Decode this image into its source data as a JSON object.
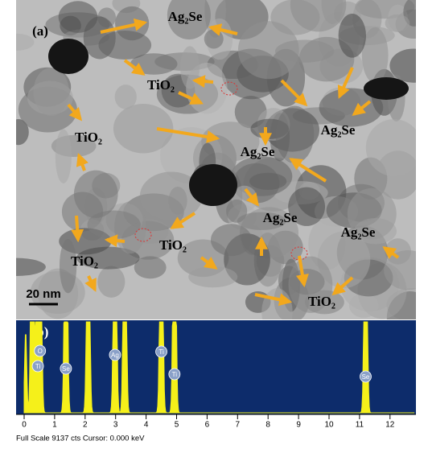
{
  "figure": {
    "panel_a": {
      "label": "(a)",
      "annotations": [
        "Ag₂Se",
        "TiO₂",
        "TiO₂",
        "Ag₂Se",
        "Ag₂Se",
        "Ag₂Se",
        "Ag₂Se",
        "TiO₂",
        "TiO₂",
        "TiO₂"
      ],
      "scale_bar": "20 nm"
    },
    "panel_b": {
      "label": "(b)",
      "peaks": [
        "O",
        "Ti",
        "Se",
        "Ag",
        "Ti",
        "Ti",
        "Se"
      ],
      "x_ticks": [
        0,
        1,
        2,
        3,
        4,
        5,
        6,
        7,
        8,
        9,
        10,
        11,
        12
      ],
      "footer": "Full Scale 9137 cts  Cursor: 0.000 keV"
    }
  }
}
